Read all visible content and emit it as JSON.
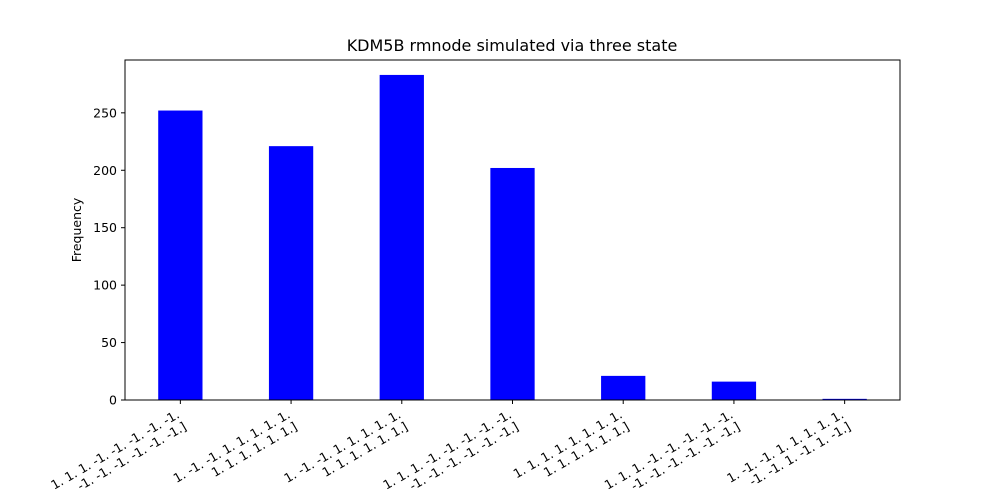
{
  "chart_data": {
    "type": "bar",
    "title": "KDM5B rmnode simulated via three state",
    "xlabel": "",
    "ylabel": "Frequency",
    "ylim": [
      0,
      296
    ],
    "yticks": [
      0,
      50,
      100,
      150,
      200,
      250
    ],
    "grid": false,
    "legend": "none",
    "bar_color": "#0000ff",
    "categories": [
      [
        "1.  1.  1. -1. -1. -1. -1. -1.",
        "-1. -1. -1. -1. -1. -1.]"
      ],
      [
        "1. -1. -1.  1.  1.  1.  1.  1.",
        "1.  1.  1.  1.  1.  1.]"
      ],
      [
        "1. -1. -1.  1.  1.  1.  1.  1.",
        "1.  1.  1.  1.  1.  1.]"
      ],
      [
        "1.  1.  1. -1. -1. -1. -1. -1.",
        "-1. -1. -1. -1. -1. -1.]"
      ],
      [
        "1.  1.  1.  1.  1.  1.  1.  1.",
        "1.  1.  1.  1.  1.  1.]"
      ],
      [
        "1.  1.  1. -1. -1. -1. -1. -1.",
        "-1. -1. -1. -1. -1. -1.]"
      ],
      [
        "1. -1. -1.  1.  1.  1.  1.  1.",
        "-1. -1.  1. -1.  1. -1.]"
      ]
    ],
    "values": [
      252,
      221,
      283,
      202,
      21,
      16,
      1
    ]
  }
}
